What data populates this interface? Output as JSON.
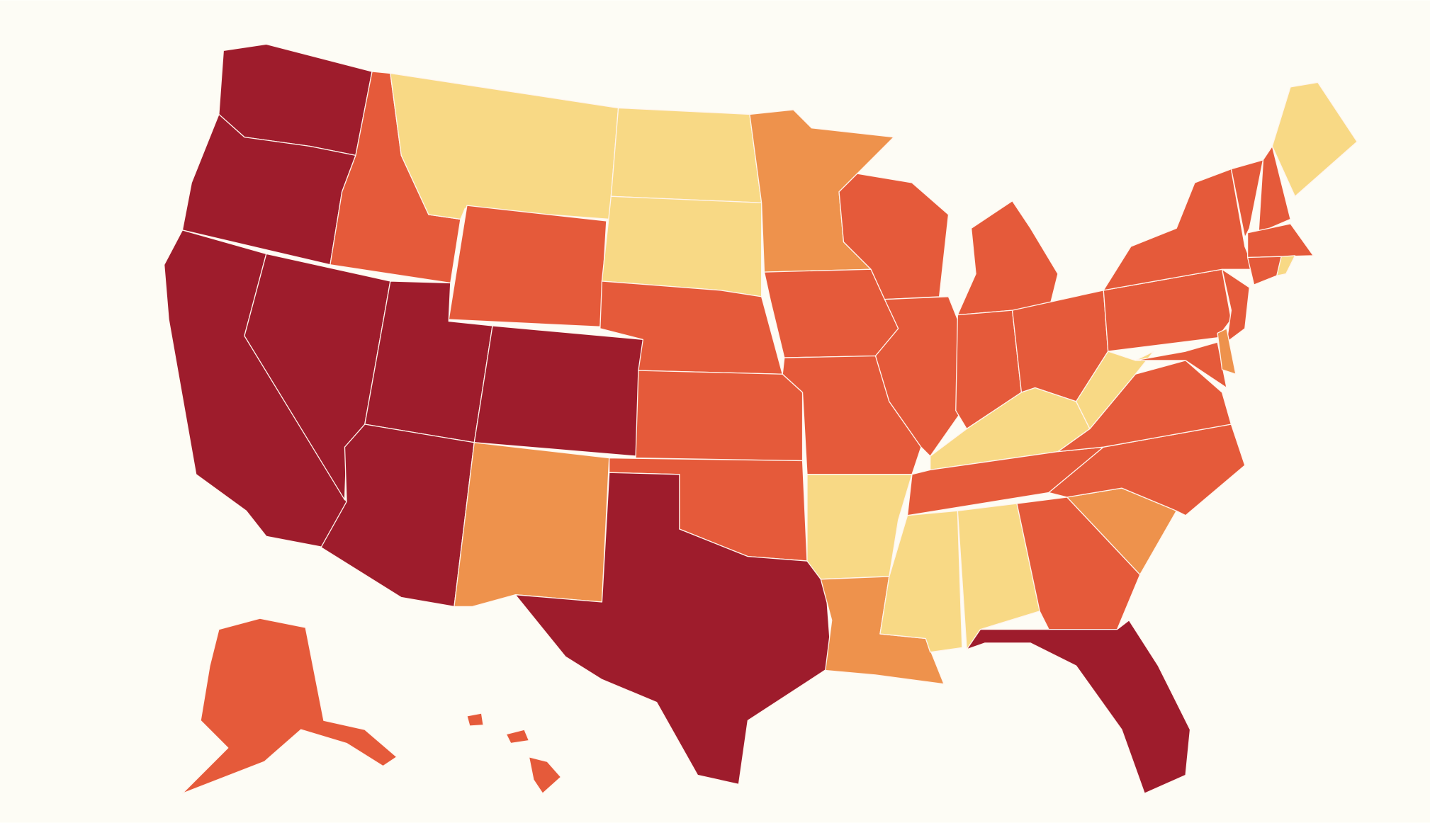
{
  "map": {
    "background": "#fdfcf5",
    "border": "#fff5ee",
    "regions": [
      {
        "color": "#9e1c2c"
      },
      {
        "color": "#9e1c2c"
      },
      {
        "color": "#9e1c2c"
      },
      {
        "color": "#9e1c2c"
      },
      {
        "color": "#e55a3a"
      },
      {
        "color": "#f8d985"
      },
      {
        "color": "#e55a3a"
      },
      {
        "color": "#9e1c2c"
      },
      {
        "color": "#9e1c2c"
      },
      {
        "color": "#9e1c2c"
      },
      {
        "color": "#ee924c"
      },
      {
        "color": "#f8d985"
      },
      {
        "color": "#f8d985"
      },
      {
        "color": "#e55a3a"
      },
      {
        "color": "#e55a3a"
      },
      {
        "color": "#e55a3a"
      },
      {
        "color": "#9e1c2c"
      },
      {
        "color": "#ee924c"
      },
      {
        "color": "#e55a3a"
      },
      {
        "color": "#e55a3a"
      },
      {
        "color": "#f8d985"
      },
      {
        "color": "#ee924c"
      },
      {
        "color": "#e55a3a"
      },
      {
        "color": "#e55a3a"
      },
      {
        "color": "#e55a3a"
      },
      {
        "color": "#e55a3a"
      },
      {
        "color": "#e55a3a"
      },
      {
        "color": "#f8d985"
      },
      {
        "color": "#e55a3a"
      },
      {
        "color": "#f8d985"
      },
      {
        "color": "#f8d985"
      },
      {
        "color": "#e55a3a"
      },
      {
        "color": "#9e1c2c"
      },
      {
        "color": "#ee924c"
      },
      {
        "color": "#e55a3a"
      },
      {
        "color": "#e55a3a"
      },
      {
        "color": "#f8d985"
      },
      {
        "color": "#e55a3a"
      },
      {
        "color": "#e55a3a"
      },
      {
        "color": "#e55a3a"
      },
      {
        "color": "#e55a3a"
      },
      {
        "color": "#f8d985"
      },
      {
        "color": "#e55a3a"
      },
      {
        "color": "#e55a3a"
      },
      {
        "color": "#f8d985"
      },
      {
        "color": "#e55a3a"
      },
      {
        "color": "#e55a3a"
      },
      {
        "color": "#ee924c"
      },
      {
        "color": "#e55a3a"
      },
      {
        "color": "#e55a3a"
      },
      {
        "color": "#e55a3a"
      },
      {
        "color": "#e55a3a"
      }
    ]
  }
}
